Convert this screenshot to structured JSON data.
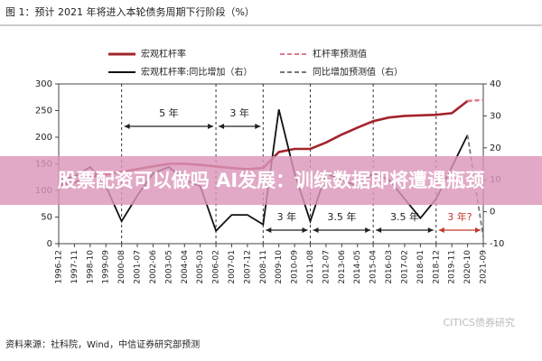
{
  "chart_data": {
    "type": "line",
    "title": "图 1：预计 2021 年将进入本轮债务周期下行阶段（%）",
    "categories": [
      "1996-12",
      "1997-11",
      "1998-10",
      "1999-09",
      "2000-08",
      "2001-07",
      "2002-06",
      "2003-05",
      "2004-04",
      "2005-03",
      "2006-02",
      "2007-01",
      "2007-12",
      "2008-11",
      "2009-10",
      "2010-09",
      "2011-08",
      "2012-07",
      "2013-06",
      "2014-05",
      "2015-04",
      "2016-03",
      "2017-02",
      "2018-01",
      "2018-12",
      "2019-11",
      "2020-10",
      "2021-09"
    ],
    "series": [
      {
        "name": "宏观杠杆率",
        "color": "#a3242c",
        "dash": false,
        "axis": "y",
        "values": [
          110,
          115,
          125,
          130,
          135,
          140,
          145,
          150,
          150,
          148,
          145,
          142,
          140,
          142,
          172,
          178,
          178,
          190,
          205,
          218,
          230,
          237,
          240,
          241,
          242,
          245,
          268,
          null
        ]
      },
      {
        "name": "杠杆率预测值",
        "color": "#e0788a",
        "dash": true,
        "axis": "y",
        "values": [
          null,
          null,
          null,
          null,
          null,
          null,
          null,
          null,
          null,
          null,
          null,
          null,
          null,
          null,
          null,
          null,
          null,
          null,
          null,
          null,
          null,
          null,
          null,
          null,
          null,
          null,
          268,
          270
        ]
      },
      {
        "name": "宏观杠杆率:同比增加（右）",
        "color": "#111111",
        "dash": false,
        "axis": "y2",
        "values": [
          10,
          11,
          14,
          8,
          -3,
          5,
          12,
          14,
          10,
          8,
          -6,
          -1,
          -1,
          -4,
          32,
          12,
          -3,
          12,
          10,
          8,
          12,
          10,
          4,
          -2,
          4,
          14,
          24,
          null
        ]
      },
      {
        "name": "同比增加预测值（右）",
        "color": "#777777",
        "dash": true,
        "axis": "y2",
        "values": [
          null,
          null,
          null,
          null,
          null,
          null,
          null,
          null,
          null,
          null,
          null,
          null,
          null,
          null,
          null,
          null,
          null,
          null,
          null,
          null,
          null,
          null,
          null,
          null,
          null,
          null,
          24,
          -8
        ]
      }
    ],
    "ylim": [
      0,
      300
    ],
    "yticks": [
      0,
      50,
      100,
      150,
      200,
      250,
      300
    ],
    "y2lim": [
      -10,
      40
    ],
    "y2ticks": [
      -10,
      0,
      10,
      20,
      30,
      40
    ],
    "annotations": [
      "5 年",
      "3 年",
      "3 年",
      "3.5 年",
      "3.5 年",
      "3 年?"
    ],
    "source": "资料来源：社科院，Wind，中信证券研究部预测",
    "watermark": "CITICS债券研究"
  },
  "banner": "股票配资可以做吗 AI发展：训练数据即将遭遇瓶颈"
}
